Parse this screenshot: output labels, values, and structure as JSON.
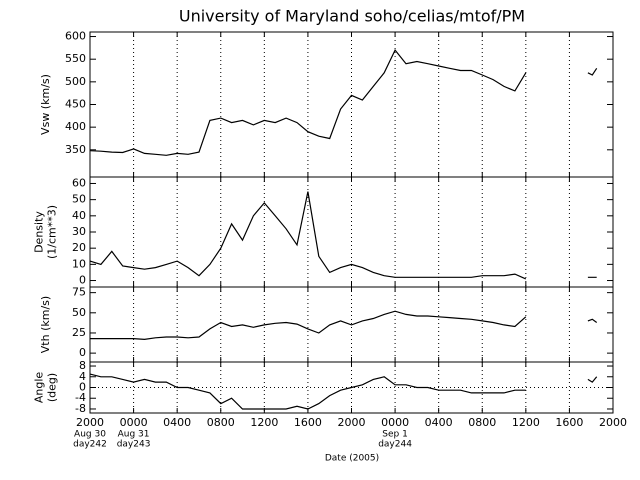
{
  "chart_data": {
    "type": "line",
    "title": "University of Maryland  soho/celias/mtof/PM",
    "xlabel": "Date (2005)",
    "color": "#000000",
    "grid": "x",
    "xlim": [
      0,
      48
    ],
    "xticks": [
      {
        "value": 0,
        "label": "2000",
        "date": "Aug 30",
        "day": "day242"
      },
      {
        "value": 4,
        "label": "0000",
        "date": "Aug 31",
        "day": "day243"
      },
      {
        "value": 8,
        "label": "0400"
      },
      {
        "value": 12,
        "label": "0800"
      },
      {
        "value": 16,
        "label": "1200"
      },
      {
        "value": 20,
        "label": "1600"
      },
      {
        "value": 24,
        "label": "2000"
      },
      {
        "value": 28,
        "label": "0000",
        "date": "Sep 1",
        "day": "day244"
      },
      {
        "value": 32,
        "label": "0400"
      },
      {
        "value": 36,
        "label": "0800"
      },
      {
        "value": 40,
        "label": "1200"
      },
      {
        "value": 44,
        "label": "1600"
      },
      {
        "value": 48,
        "label": "2000"
      }
    ],
    "x": [
      0,
      1,
      2,
      3,
      4,
      5,
      6,
      7,
      8,
      9,
      10,
      11,
      12,
      13,
      14,
      15,
      16,
      17,
      18,
      19,
      20,
      21,
      22,
      23,
      24,
      25,
      26,
      27,
      28,
      29,
      30,
      31,
      32,
      33,
      34,
      35,
      36,
      37,
      38,
      39,
      40,
      43,
      45.7,
      46.1,
      46.5
    ],
    "panels": [
      {
        "ylabel": [
          "Vsw (km/s)"
        ],
        "ylim": [
          290,
          610
        ],
        "yticks": [
          350,
          400,
          450,
          500,
          550,
          600
        ],
        "values": [
          348,
          347,
          345,
          344,
          352,
          342,
          340,
          338,
          342,
          340,
          345,
          415,
          420,
          410,
          415,
          405,
          415,
          410,
          420,
          410,
          390,
          380,
          375,
          440,
          470,
          460,
          490,
          520,
          570,
          540,
          545,
          540,
          535,
          530,
          525,
          525,
          515,
          505,
          490,
          480,
          520,
          null,
          520,
          515,
          530
        ]
      },
      {
        "ylabel": [
          "Density",
          "(1/cm**3)"
        ],
        "ylim": [
          -4,
          64
        ],
        "yticks": [
          0,
          10,
          20,
          30,
          40,
          50,
          60
        ],
        "values": [
          12,
          10,
          18,
          9,
          8,
          7,
          8,
          10,
          12,
          8,
          3,
          10,
          20,
          35,
          25,
          40,
          48,
          40,
          32,
          22,
          55,
          15,
          5,
          8,
          10,
          8,
          5,
          3,
          2,
          2,
          2,
          2,
          2,
          2,
          2,
          2,
          3,
          3,
          3,
          4,
          1,
          null,
          2,
          2,
          2
        ]
      },
      {
        "ylabel": [
          "Vth (km/s)"
        ],
        "ylim": [
          -11,
          82
        ],
        "yticks": [
          0,
          25,
          50,
          75
        ],
        "values": [
          18,
          18,
          18,
          18,
          18,
          17,
          19,
          20,
          20,
          19,
          20,
          30,
          38,
          33,
          35,
          32,
          35,
          37,
          38,
          36,
          30,
          25,
          35,
          40,
          35,
          40,
          43,
          48,
          52,
          48,
          46,
          46,
          45,
          44,
          43,
          42,
          40,
          38,
          35,
          33,
          45,
          null,
          40,
          42,
          38
        ]
      },
      {
        "ylabel": [
          "Angle",
          "(deg)"
        ],
        "ylim": [
          -9.5,
          9.5
        ],
        "yticks": [
          -8,
          -4,
          0,
          4,
          8
        ],
        "hline": 0,
        "values": [
          5,
          4,
          4,
          3,
          2,
          3,
          2,
          2,
          0,
          0,
          -1,
          -2,
          -6,
          -4,
          -8,
          -8,
          -8,
          -8,
          -8,
          -7,
          -8,
          -6,
          -3,
          -1,
          0,
          1,
          3,
          4,
          1,
          1,
          0,
          0,
          -1,
          -1,
          -1,
          -2,
          -2,
          -2,
          -2,
          -1,
          -1,
          null,
          3,
          2,
          4
        ]
      }
    ]
  }
}
